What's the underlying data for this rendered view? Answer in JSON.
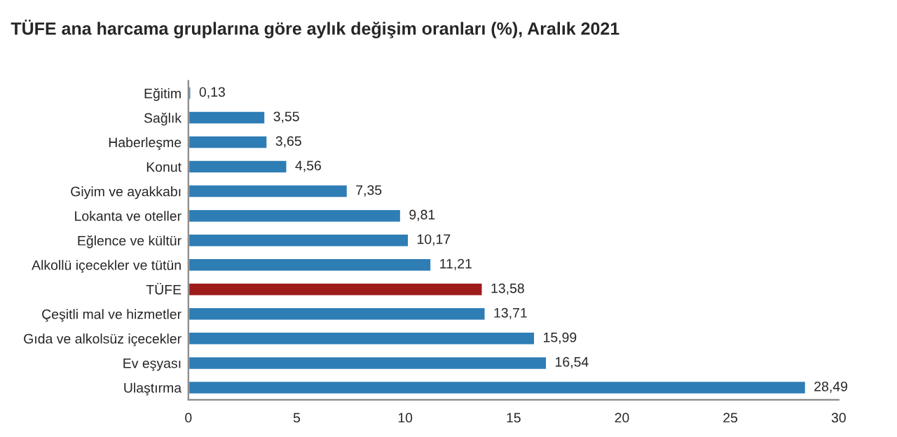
{
  "chart_data": {
    "type": "bar",
    "orientation": "horizontal",
    "title": "TÜFE ana harcama gruplarına göre aylık değişim oranları (%), Aralık 2021",
    "categories": [
      "Eğitim",
      "Sağlık",
      "Haberleşme",
      "Konut",
      "Giyim ve ayakkabı",
      "Lokanta ve oteller",
      "Eğlence ve kültür",
      "Alkollü içecekler ve tütün",
      "TÜFE",
      "Çeşitli mal ve hizmetler",
      "Gıda ve alkolsüz içecekler",
      "Ev eşyası",
      "Ulaştırma"
    ],
    "values": [
      0.13,
      3.55,
      3.65,
      4.56,
      7.35,
      9.81,
      10.17,
      11.21,
      13.58,
      13.71,
      15.99,
      16.54,
      28.49
    ],
    "value_labels": [
      "0,13",
      "3,55",
      "3,65",
      "4,56",
      "7,35",
      "9,81",
      "10,17",
      "11,21",
      "13,58",
      "13,71",
      "15,99",
      "16,54",
      "28,49"
    ],
    "colors": [
      "#2e7db5",
      "#2e7db5",
      "#2e7db5",
      "#2e7db5",
      "#2e7db5",
      "#2e7db5",
      "#2e7db5",
      "#2e7db5",
      "#9e1b1b",
      "#2e7db5",
      "#2e7db5",
      "#2e7db5",
      "#2e7db5"
    ],
    "xlim": [
      0,
      30
    ],
    "xticks": [
      0,
      5,
      10,
      15,
      20,
      25,
      30
    ],
    "grid": false,
    "legend": false
  }
}
